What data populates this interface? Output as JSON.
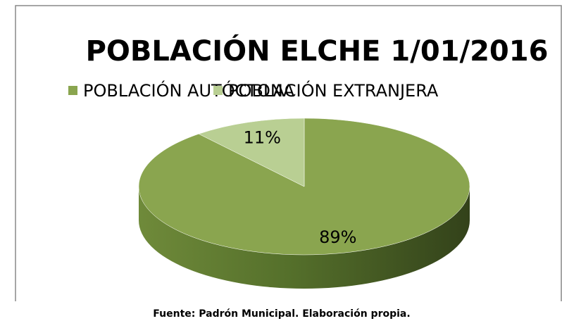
{
  "chart_data": {
    "type": "pie",
    "title": "POBLACIÓN ELCHE 1/01/2016",
    "series": [
      {
        "name": "POBLACIÓN AUTÓCTONA",
        "color": "#8aa54f"
      },
      {
        "name": "POBLACIÓN EXTRANJERA",
        "color": "#b9cf93"
      }
    ],
    "categories": [
      "POBLACIÓN AUTÓCTONA",
      "POBLACIÓN EXTRANJERA"
    ],
    "values": [
      89,
      11
    ],
    "value_labels": [
      "89%",
      "11%"
    ],
    "colors": [
      "#8aa54f",
      "#b9cf93"
    ],
    "legend": "top",
    "source": "Fuente: Padrón Municipal. Elaboración propia."
  }
}
